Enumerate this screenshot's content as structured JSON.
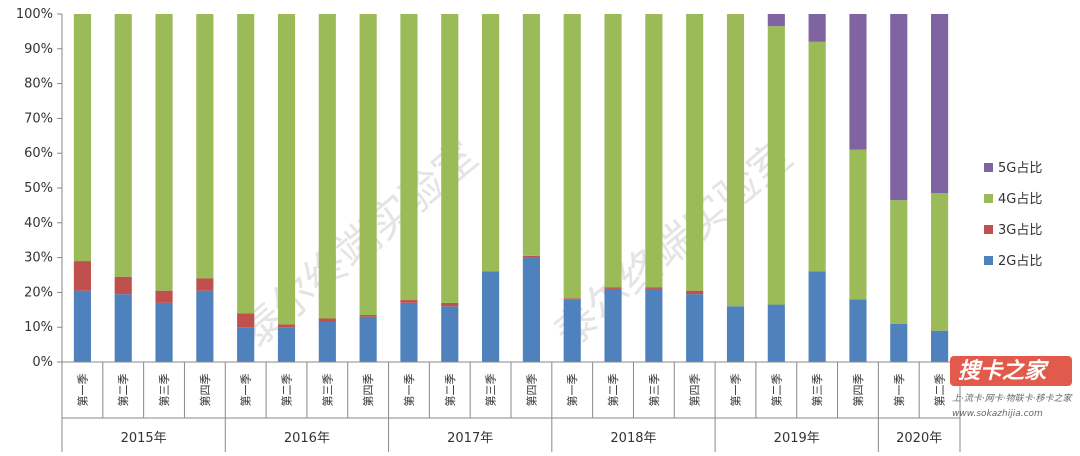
{
  "chart_data": {
    "type": "bar",
    "stacked": true,
    "ylim": [
      0,
      100
    ],
    "yticks": [
      "0%",
      "10%",
      "20%",
      "30%",
      "40%",
      "50%",
      "60%",
      "70%",
      "80%",
      "90%",
      "100%"
    ],
    "groups": [
      {
        "label": "2015年",
        "quarters": [
          "第一季",
          "第二季",
          "第三季",
          "第四季"
        ]
      },
      {
        "label": "2016年",
        "quarters": [
          "第一季",
          "第二季",
          "第三季",
          "第四季"
        ]
      },
      {
        "label": "2017年",
        "quarters": [
          "第一季",
          "第二季",
          "第三季",
          "第四季"
        ]
      },
      {
        "label": "2018年",
        "quarters": [
          "第一季",
          "第二季",
          "第三季",
          "第四季"
        ]
      },
      {
        "label": "2019年",
        "quarters": [
          "第一季",
          "第二季",
          "第三季",
          "第四季"
        ]
      },
      {
        "label": "2020年",
        "quarters": [
          "第一季",
          "第二季"
        ]
      }
    ],
    "series": [
      {
        "name": "2G占比",
        "color": "#4f81bd",
        "values": [
          20.5,
          19.5,
          17,
          20.5,
          10,
          10,
          11.5,
          13,
          17,
          16,
          26,
          30,
          18,
          21,
          21,
          19.5,
          16,
          16.5,
          26,
          18,
          11,
          9
        ]
      },
      {
        "name": "3G占比",
        "color": "#c0504d",
        "values": [
          8.5,
          5,
          3.5,
          3.5,
          4,
          0.8,
          1,
          0.5,
          0.8,
          1,
          0,
          0.5,
          0.3,
          0.5,
          0.5,
          1,
          0,
          0,
          0,
          0,
          0,
          0
        ]
      },
      {
        "name": "4G占比",
        "color": "#9bbb59",
        "values": [
          71,
          75.5,
          79.5,
          76,
          86,
          89.2,
          87.5,
          86.5,
          82.2,
          83,
          74,
          69.5,
          81.7,
          78.5,
          78.5,
          79.5,
          84,
          80,
          66,
          43,
          35.5,
          39.5
        ]
      },
      {
        "name": "5G占比",
        "color": "#8064a2",
        "values": [
          0,
          0,
          0,
          0,
          0,
          0,
          0,
          0,
          0,
          0,
          0,
          0,
          0,
          0,
          0,
          0,
          0,
          3.5,
          8,
          39,
          53.5,
          51.5
        ]
      }
    ],
    "legend_order": [
      "5G占比",
      "4G占比",
      "3G占比",
      "2G占比"
    ],
    "legend_position": "right",
    "grid": false
  },
  "watermarks": [
    "泰尔终端实验室",
    "泰尔终端实验室"
  ],
  "logo": {
    "main": "搜卡之家",
    "sub": "上·流卡·网卡·物联卡·移卡之家",
    "url": "www.sokazhijia.com"
  }
}
